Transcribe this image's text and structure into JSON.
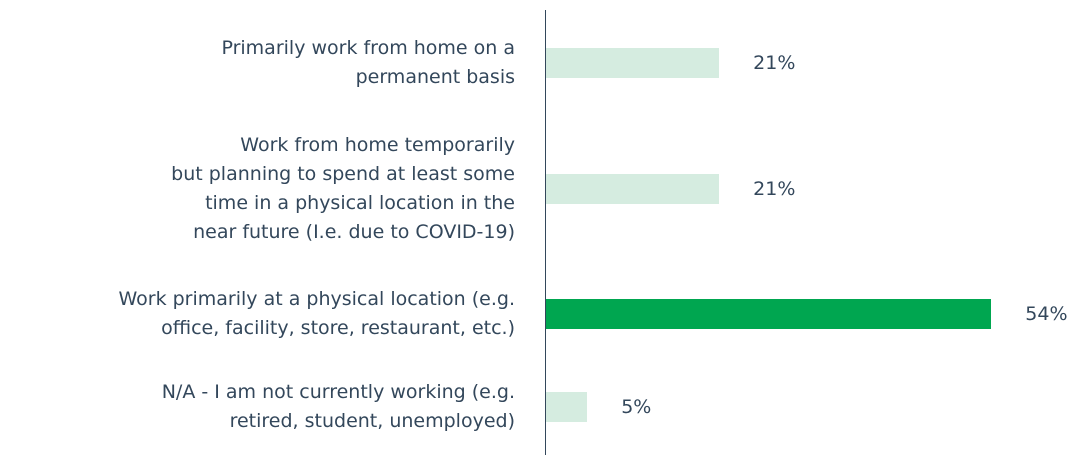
{
  "chart_data": {
    "type": "bar",
    "orientation": "horizontal",
    "categories": [
      "Primarily work from home on a\npermanent basis",
      "Work from home temporarily\nbut planning to spend at least some\ntime in a physical location in the\nnear future (I.e. due to COVID-19)",
      "Work primarily at a physical location (e.g.\noffice, facility, store, restaurant, etc.)",
      "N/A - I am not currently working (e.g.\nretired, student, unemployed)"
    ],
    "values": [
      21,
      21,
      54,
      5
    ],
    "value_labels": [
      "21%",
      "21%",
      "54%",
      "5%"
    ],
    "colors": [
      "#d5ece0",
      "#d5ece0",
      "#00a650",
      "#d5ece0"
    ],
    "xlim": [
      0,
      65
    ]
  }
}
